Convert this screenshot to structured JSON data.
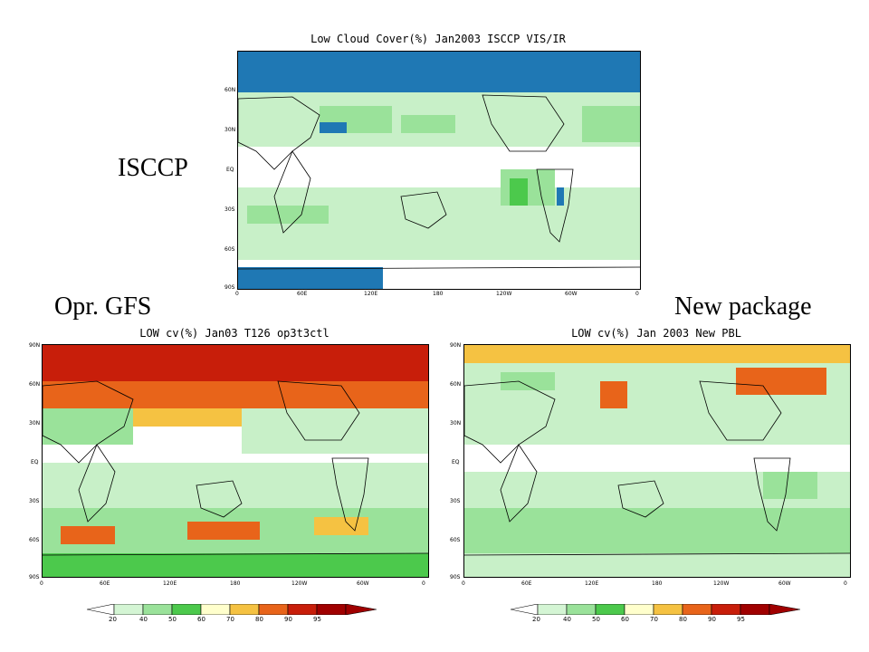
{
  "labels": {
    "isccp": "ISCCP",
    "opr_gfs": "Opr. GFS",
    "new_package": "New package"
  },
  "maps": [
    {
      "id": "isccp",
      "title": "Low Cloud Cover(%) Jan2003 ISCCP VIS/IR",
      "lat_labels": [
        "60N",
        "30N",
        "EQ",
        "30S",
        "60S",
        "90S"
      ],
      "lon_labels": [
        "0",
        "60E",
        "120E",
        "180",
        "120W",
        "60W",
        "0"
      ]
    },
    {
      "id": "opr-gfs",
      "title": "LOW cv(%) Jan03 T126 op3t3ctl",
      "lat_labels": [
        "90N",
        "60N",
        "30N",
        "EQ",
        "30S",
        "60S",
        "90S"
      ],
      "lon_labels": [
        "0",
        "60E",
        "120E",
        "180",
        "120W",
        "60W",
        "0"
      ]
    },
    {
      "id": "new-pbl",
      "title": "LOW cv(%) Jan 2003 New PBL",
      "lat_labels": [
        "90N",
        "60N",
        "30N",
        "EQ",
        "30S",
        "60S",
        "90S"
      ],
      "lon_labels": [
        "0",
        "60E",
        "120E",
        "180",
        "120W",
        "60W",
        "0"
      ]
    }
  ],
  "colorbar": {
    "levels": [
      "20",
      "40",
      "50",
      "60",
      "70",
      "80",
      "90",
      "95"
    ],
    "colors": [
      "#ffffff",
      "#d4f5d4",
      "#9ae29a",
      "#4cc94c",
      "#ffffcc",
      "#f5c242",
      "#e8641a",
      "#c81e0a",
      "#a00000"
    ]
  },
  "colors": {
    "isccp_missing": "#1f78b4",
    "land_outline": "#000000"
  }
}
